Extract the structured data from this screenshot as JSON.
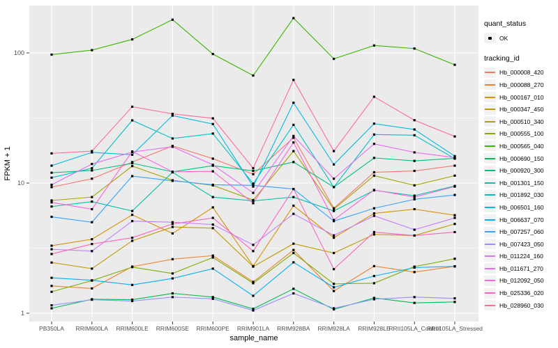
{
  "colors": {
    "panel_bg": "#EBEBEB",
    "grid": "#FFFFFF",
    "point": "#000000",
    "axis_text": "#4D4D4D",
    "axis_title": "#000000",
    "legend_key_bg": "#F2F2F2"
  },
  "axes": {
    "y_title": "FPKM + 1",
    "x_title": "sample_name",
    "y_tick_labels": [
      "100",
      "10",
      "1"
    ]
  },
  "legend": {
    "quant_title": "quant_status",
    "quant_item": "OK",
    "tracking_title": "tracking_id"
  },
  "chart_data": {
    "type": "line",
    "title": "",
    "xlabel": "sample_name",
    "ylabel": "FPKM + 1",
    "y_scale": "log10",
    "ylim": [
      0.85,
      230
    ],
    "y_major_ticks": [
      1,
      10,
      100
    ],
    "y_minor_ticks": [
      3.162,
      31.62
    ],
    "grid": "white on gray panel",
    "legend_position": "right",
    "point_marker": "small black square (quant_status = OK)",
    "categories": [
      "PB350LA",
      "RRIM600LA",
      "RRIM600LE",
      "RRIM600SE",
      "RRIM600PE",
      "RRIM901LA",
      "RRIM928BA",
      "RRIM928LA",
      "RRIM928LE",
      "RRII105LA_Control",
      "RRII105LA_Stressed"
    ],
    "series": [
      {
        "name": "Hb_000008_420",
        "color": "#F8766D",
        "values": [
          9.3,
          10.8,
          14.5,
          19.3,
          15.4,
          11.7,
          22.3,
          6.4,
          12.1,
          12.4,
          13.6
        ]
      },
      {
        "name": "Hb_000088_270",
        "color": "#EA8331",
        "values": [
          1.62,
          1.55,
          2.28,
          2.6,
          2.77,
          1.74,
          3.06,
          1.48,
          2.3,
          2.07,
          2.29
        ]
      },
      {
        "name": "Hb_000167_010",
        "color": "#D89000",
        "values": [
          3.3,
          3.7,
          5.7,
          4.1,
          6.5,
          2.3,
          6.7,
          3.8,
          5.85,
          6.3,
          5.66
        ]
      },
      {
        "name": "Hb_000347_450",
        "color": "#C09B00",
        "values": [
          2.45,
          2.2,
          3.6,
          4.6,
          4.5,
          2.28,
          3.42,
          2.9,
          4.03,
          3.95,
          4.85
        ]
      },
      {
        "name": "Hb_000510_340",
        "color": "#A3A500",
        "values": [
          7.35,
          7.8,
          13.5,
          10.5,
          9.6,
          7.4,
          17.6,
          6.3,
          11.4,
          9.6,
          11.4
        ]
      },
      {
        "name": "Hb_000555_100",
        "color": "#7CAE00",
        "values": [
          1.46,
          1.78,
          2.26,
          2.02,
          2.68,
          1.7,
          2.9,
          1.68,
          1.7,
          2.28,
          2.62
        ]
      },
      {
        "name": "Hb_000565_040",
        "color": "#39B600",
        "values": [
          97,
          105,
          127,
          180,
          98,
          67,
          185,
          90,
          114,
          108,
          81
        ]
      },
      {
        "name": "Hb_000690_150",
        "color": "#00BB4E",
        "values": [
          1.09,
          1.28,
          1.27,
          1.42,
          1.33,
          1.08,
          1.54,
          1.07,
          1.31,
          1.2,
          1.22
        ]
      },
      {
        "name": "Hb_000920_300",
        "color": "#00BF7D",
        "values": [
          12.0,
          12.5,
          14.2,
          12.2,
          13.6,
          12.4,
          14.5,
          9.3,
          15.6,
          14.8,
          15.5
        ]
      },
      {
        "name": "Hb_001301_150",
        "color": "#00C1A3",
        "values": [
          6.6,
          7.2,
          6.1,
          12.1,
          7.8,
          7.3,
          7.8,
          6.1,
          8.8,
          8.0,
          9.5
        ]
      },
      {
        "name": "Hb_001892_030",
        "color": "#00BFC4",
        "values": [
          11.0,
          13.0,
          30.3,
          22.0,
          24.0,
          9.9,
          28.0,
          9.3,
          23.6,
          23.3,
          15.4
        ]
      },
      {
        "name": "Hb_006501_160",
        "color": "#00BAE0",
        "values": [
          13.6,
          17.2,
          16.5,
          33.0,
          28.4,
          9.4,
          41.4,
          13.9,
          28.6,
          25.8,
          16.1
        ]
      },
      {
        "name": "Hb_006637_070",
        "color": "#00B0F6",
        "values": [
          1.87,
          1.79,
          1.65,
          1.85,
          2.2,
          1.36,
          2.46,
          1.58,
          1.93,
          2.24,
          2.29
        ]
      },
      {
        "name": "Hb_007257_060",
        "color": "#35A2FF",
        "values": [
          5.5,
          5.0,
          11.3,
          10.4,
          9.7,
          9.6,
          9.0,
          5.1,
          6.4,
          7.5,
          8.1
        ]
      },
      {
        "name": "Hb_007423_050",
        "color": "#9590FF",
        "values": [
          1.15,
          1.27,
          1.24,
          1.33,
          1.29,
          1.05,
          1.42,
          1.09,
          1.28,
          1.33,
          1.3
        ]
      },
      {
        "name": "Hb_011224_160",
        "color": "#C77CFF",
        "values": [
          3.1,
          3.0,
          5.1,
          5.0,
          4.8,
          3.35,
          5.8,
          3.96,
          5.6,
          4.38,
          5.4
        ]
      },
      {
        "name": "Hb_011671_270",
        "color": "#E76BF3",
        "values": [
          9.7,
          14.0,
          17.3,
          19.0,
          13.8,
          8.4,
          23.0,
          10.8,
          20.0,
          17.2,
          15.7
        ]
      },
      {
        "name": "Hb_012092_050",
        "color": "#FA62DB",
        "values": [
          7.1,
          6.3,
          17.5,
          12.2,
          12.3,
          7.0,
          20.5,
          5.2,
          8.85,
          7.8,
          9.4
        ]
      },
      {
        "name": "Hb_025336_020",
        "color": "#FF62BC",
        "values": [
          2.85,
          3.4,
          3.8,
          4.85,
          5.4,
          3.0,
          9.0,
          2.18,
          4.2,
          3.95,
          4.2
        ]
      },
      {
        "name": "Hb_028960_030",
        "color": "#FF6A98",
        "values": [
          16.9,
          17.6,
          38.6,
          34.0,
          31.4,
          13.0,
          62.0,
          17.6,
          46.0,
          30.4,
          22.8
        ]
      }
    ]
  }
}
